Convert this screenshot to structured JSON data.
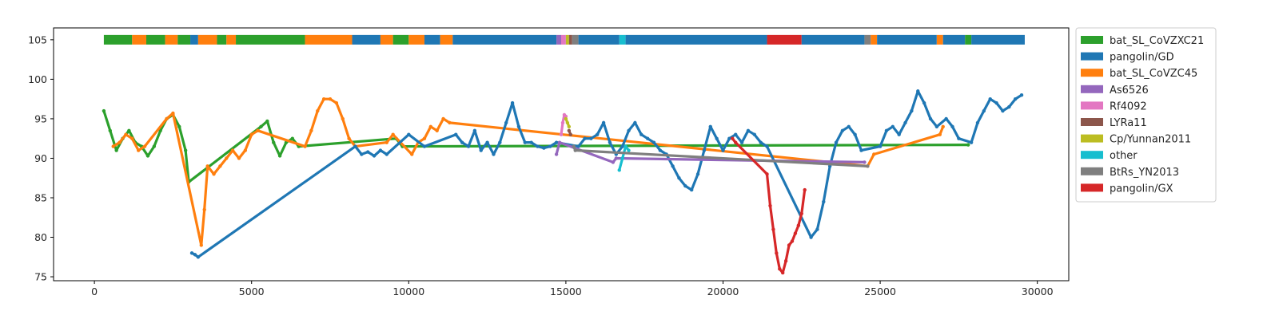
{
  "chart_data": {
    "type": "scatter",
    "title": "",
    "xlabel": "",
    "ylabel": "",
    "xlim": [
      -1300,
      31000
    ],
    "ylim": [
      74.5,
      106.5
    ],
    "x_ticks": [
      0,
      5000,
      10000,
      15000,
      20000,
      25000,
      30000
    ],
    "x_tick_labels": [
      "0",
      "5000",
      "10000",
      "15000",
      "20000",
      "25000",
      "30000"
    ],
    "y_ticks": [
      75,
      80,
      85,
      90,
      95,
      100,
      105
    ],
    "y_tick_labels": [
      "75",
      "80",
      "85",
      "90",
      "95",
      "100",
      "105"
    ],
    "grid": false,
    "legend_position": "outside upper right",
    "legend": [
      {
        "name": "bat_SL_CoVZXC21",
        "color": "#2ca02c"
      },
      {
        "name": "pangolin/GD",
        "color": "#1f77b4"
      },
      {
        "name": "bat_SL_CoVZC45",
        "color": "#ff7f0e"
      },
      {
        "name": "As6526",
        "color": "#9467bd"
      },
      {
        "name": "Rf4092",
        "color": "#e377c2"
      },
      {
        "name": "LYRa11",
        "color": "#8c564b"
      },
      {
        "name": "Cp/Yunnan2011",
        "color": "#bcbd22"
      },
      {
        "name": "other",
        "color": "#17becf"
      },
      {
        "name": "BtRs_YN2013",
        "color": "#7f7f7f"
      },
      {
        "name": "pangolin/GX",
        "color": "#d62728"
      }
    ],
    "top_bar_y": 105,
    "top_bar_segments": [
      {
        "start": 300,
        "end": 1200,
        "series": "bat_SL_CoVZXC21"
      },
      {
        "start": 1200,
        "end": 1650,
        "series": "bat_SL_CoVZC45"
      },
      {
        "start": 1650,
        "end": 2250,
        "series": "bat_SL_CoVZXC21"
      },
      {
        "start": 2250,
        "end": 2650,
        "series": "bat_SL_CoVZC45"
      },
      {
        "start": 2650,
        "end": 3050,
        "series": "bat_SL_CoVZXC21"
      },
      {
        "start": 3050,
        "end": 3300,
        "series": "pangolin/GD"
      },
      {
        "start": 3300,
        "end": 3900,
        "series": "bat_SL_CoVZC45"
      },
      {
        "start": 3900,
        "end": 4200,
        "series": "bat_SL_CoVZXC21"
      },
      {
        "start": 4200,
        "end": 4500,
        "series": "bat_SL_CoVZC45"
      },
      {
        "start": 4500,
        "end": 5300,
        "series": "bat_SL_CoVZXC21"
      },
      {
        "start": 5300,
        "end": 6700,
        "series": "bat_SL_CoVZXC21"
      },
      {
        "start": 6700,
        "end": 8200,
        "series": "bat_SL_CoVZC45"
      },
      {
        "start": 8200,
        "end": 9100,
        "series": "pangolin/GD"
      },
      {
        "start": 9100,
        "end": 9500,
        "series": "bat_SL_CoVZC45"
      },
      {
        "start": 9500,
        "end": 10000,
        "series": "bat_SL_CoVZXC21"
      },
      {
        "start": 10000,
        "end": 10500,
        "series": "bat_SL_CoVZC45"
      },
      {
        "start": 10500,
        "end": 11000,
        "series": "pangolin/GD"
      },
      {
        "start": 11000,
        "end": 11400,
        "series": "bat_SL_CoVZC45"
      },
      {
        "start": 11400,
        "end": 14700,
        "series": "pangolin/GD"
      },
      {
        "start": 14700,
        "end": 14850,
        "series": "As6526"
      },
      {
        "start": 14850,
        "end": 15000,
        "series": "Rf4092"
      },
      {
        "start": 15000,
        "end": 15100,
        "series": "Cp/Yunnan2011"
      },
      {
        "start": 15100,
        "end": 15200,
        "series": "LYRa11"
      },
      {
        "start": 15200,
        "end": 15400,
        "series": "BtRs_YN2013"
      },
      {
        "start": 15400,
        "end": 16700,
        "series": "pangolin/GD"
      },
      {
        "start": 16700,
        "end": 16900,
        "series": "other"
      },
      {
        "start": 16900,
        "end": 21400,
        "series": "pangolin/GD"
      },
      {
        "start": 21400,
        "end": 22500,
        "series": "pangolin/GX"
      },
      {
        "start": 22500,
        "end": 24500,
        "series": "pangolin/GD"
      },
      {
        "start": 24500,
        "end": 24700,
        "series": "BtRs_YN2013"
      },
      {
        "start": 24700,
        "end": 24900,
        "series": "bat_SL_CoVZC45"
      },
      {
        "start": 24900,
        "end": 26800,
        "series": "pangolin/GD"
      },
      {
        "start": 26800,
        "end": 27000,
        "series": "bat_SL_CoVZC45"
      },
      {
        "start": 27000,
        "end": 27700,
        "series": "pangolin/GD"
      },
      {
        "start": 27700,
        "end": 27900,
        "series": "bat_SL_CoVZXC21"
      },
      {
        "start": 27900,
        "end": 29600,
        "series": "pangolin/GD"
      }
    ],
    "series": [
      {
        "name": "bat_SL_CoVZXC21",
        "color": "#2ca02c",
        "x": [
          300,
          500,
          700,
          900,
          1100,
          1300,
          1500,
          1700,
          1900,
          2100,
          2300,
          2500,
          2700,
          2900,
          3000,
          5300,
          5500,
          5700,
          5900,
          6100,
          6300,
          6500,
          9600,
          9800,
          27800
        ],
        "y": [
          96,
          93.5,
          91,
          92.5,
          93.5,
          92,
          91.5,
          90.3,
          91.5,
          93.5,
          95,
          95.5,
          94,
          91,
          87,
          94,
          94.7,
          92,
          90.3,
          92,
          92.5,
          91.5,
          92.5,
          91.5,
          91.7
        ]
      },
      {
        "name": "bat_SL_CoVZC45",
        "color": "#ff7f0e",
        "x": [
          600,
          800,
          1000,
          1200,
          1400,
          1600,
          2300,
          2500,
          3400,
          3500,
          3600,
          3800,
          4000,
          4200,
          4400,
          4600,
          4800,
          5000,
          5200,
          6700,
          6900,
          7100,
          7300,
          7500,
          7700,
          7900,
          8100,
          8300,
          9300,
          9500,
          10100,
          10300,
          10500,
          10700,
          10900,
          11100,
          11300,
          24600,
          24800,
          26900,
          27000
        ],
        "y": [
          91.5,
          92,
          93,
          92.5,
          91,
          91.5,
          95,
          95.7,
          79,
          83.5,
          89,
          88,
          89,
          90,
          91,
          90,
          91,
          93,
          93.5,
          91.5,
          93.5,
          96,
          97.5,
          97.5,
          97,
          95,
          92.5,
          91.5,
          92,
          93,
          90.5,
          92,
          92.5,
          94,
          93.5,
          95,
          94.5,
          89,
          90.5,
          93,
          94
        ]
      },
      {
        "name": "pangolin/GD",
        "color": "#1f77b4",
        "x": [
          3100,
          3200,
          3300,
          8300,
          8500,
          8700,
          8900,
          9100,
          9300,
          10000,
          10500,
          11500,
          11700,
          11900,
          12100,
          12300,
          12500,
          12700,
          12900,
          13100,
          13300,
          13500,
          13700,
          13900,
          14100,
          14300,
          14500,
          14700,
          15400,
          15600,
          15800,
          16000,
          16200,
          16400,
          16600,
          16800,
          17000,
          17200,
          17400,
          17600,
          17800,
          18000,
          18200,
          18400,
          18600,
          18800,
          19000,
          19200,
          19400,
          19600,
          19800,
          20000,
          20200,
          20400,
          20600,
          20800,
          21000,
          21200,
          21400,
          22800,
          23000,
          23200,
          23400,
          23600,
          23800,
          24000,
          24200,
          24400,
          25000,
          25200,
          25400,
          25600,
          25800,
          26000,
          26200,
          26400,
          26600,
          26800,
          27100,
          27300,
          27500,
          27900,
          28100,
          28300,
          28500,
          28700,
          28900,
          29100,
          29300,
          29500
        ],
        "y": [
          78,
          77.8,
          77.5,
          91.5,
          90.5,
          90.8,
          90.3,
          91,
          90.5,
          93,
          91.5,
          93,
          92,
          91.5,
          93.5,
          91,
          92,
          90.5,
          92,
          94.5,
          97,
          94,
          92,
          92,
          91.5,
          91.3,
          91.5,
          92,
          91.5,
          92.5,
          92.5,
          93,
          94.5,
          92,
          90.5,
          91.5,
          93.5,
          94.5,
          93,
          92.5,
          92,
          91,
          90.5,
          89,
          87.5,
          86.5,
          86,
          88,
          91,
          94,
          92.5,
          91,
          92.5,
          93,
          92,
          93.5,
          93,
          92,
          91.5,
          80,
          81,
          84.5,
          89,
          92,
          93.5,
          94,
          93,
          91,
          91.5,
          93.5,
          94,
          93,
          94.5,
          96,
          98.5,
          97,
          95,
          94,
          95,
          94,
          92.5,
          92,
          94.5,
          96,
          97.5,
          97,
          96,
          96.5,
          97.5,
          98
        ]
      },
      {
        "name": "As6526",
        "color": "#9467bd",
        "x": [
          14700,
          14800,
          16500,
          16600,
          24500
        ],
        "y": [
          90.5,
          92,
          89.5,
          90,
          89.5
        ]
      },
      {
        "name": "Rf4092",
        "color": "#e377c2",
        "x": [
          14850,
          14900,
          14950,
          15000
        ],
        "y": [
          93,
          94.5,
          95.5,
          95.3
        ]
      },
      {
        "name": "LYRa11",
        "color": "#8c564b",
        "x": [
          15100,
          15150
        ],
        "y": [
          93.5,
          93
        ]
      },
      {
        "name": "Cp/Yunnan2011",
        "color": "#bcbd22",
        "x": [
          15000,
          15050,
          15100
        ],
        "y": [
          95,
          94.5,
          94
        ]
      },
      {
        "name": "other",
        "color": "#17becf",
        "x": [
          16700,
          16800,
          16900,
          17000
        ],
        "y": [
          88.5,
          90,
          91.5,
          91
        ]
      },
      {
        "name": "BtRs_YN2013",
        "color": "#7f7f7f",
        "x": [
          15250,
          15300,
          24600
        ],
        "y": [
          91.5,
          91,
          89
        ]
      },
      {
        "name": "pangolin/GX",
        "color": "#d62728",
        "x": [
          20300,
          20400,
          21400,
          21500,
          21600,
          21700,
          21800,
          21900,
          22000,
          22100,
          22200,
          22300,
          22400,
          22500,
          22600
        ],
        "y": [
          92.5,
          92,
          88,
          84,
          81,
          78,
          76,
          75.5,
          77,
          79,
          79.5,
          80.5,
          81.5,
          83,
          86
        ]
      }
    ]
  }
}
